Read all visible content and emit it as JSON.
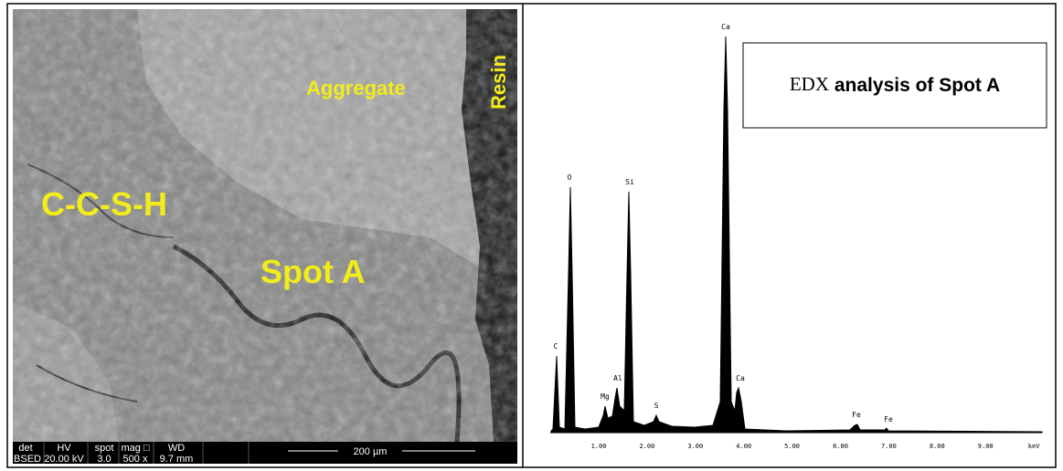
{
  "sem_image": {
    "labels": [
      "Aggregate",
      "Resin",
      "C-C-S-H",
      "Spot A"
    ],
    "info_bar": {
      "headers": [
        "det",
        "HV",
        "spot",
        "mag □",
        "WD"
      ],
      "values": [
        "BSED",
        "20.00 kV",
        "3.0",
        "500 x",
        "9.7 mm"
      ],
      "scale_bar": "200 µm"
    }
  },
  "edx": {
    "title": [
      "EDX",
      "analysis of Spot A"
    ],
    "peak_labels": [
      "C",
      "O",
      "Mg",
      "Al",
      "Si",
      "S",
      "Ca",
      "Ca",
      "Fe",
      "Fe"
    ],
    "axis_labels": [
      "1.00",
      "2.00",
      "3.00",
      "4.00",
      "5.00",
      "6.00",
      "7.00",
      "8.00",
      "9.00",
      "keV"
    ]
  }
}
